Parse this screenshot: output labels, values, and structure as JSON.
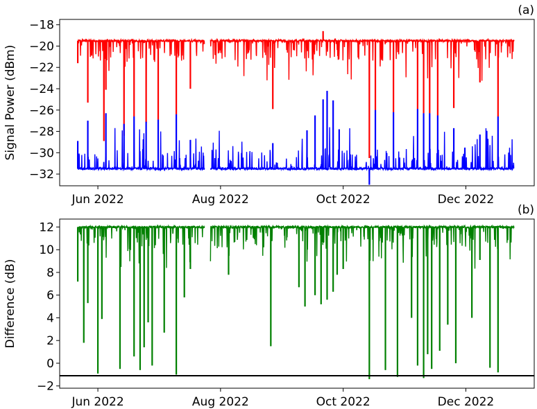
{
  "chart_data": [
    {
      "type": "line",
      "panel_label": "(a)",
      "ylabel": "Signal Power  (dBm)",
      "xlabel": "",
      "x_ticks": [
        "Jun 2022",
        "Aug 2022",
        "Oct 2022",
        "Dec 2022"
      ],
      "x_tick_dates": [
        "2022-06-01",
        "2022-08-01",
        "2022-10-01",
        "2022-12-01"
      ],
      "xlim": [
        "2022-05-13",
        "2023-01-04"
      ],
      "ylim": [
        -33.1,
        -17.5
      ],
      "y_ticks": [
        -32,
        -30,
        -28,
        -26,
        -24,
        -22,
        -20,
        -18
      ],
      "grid": false,
      "legend": "none",
      "data_start": "2022-05-22",
      "data_end": "2022-12-25",
      "data_gap": [
        "2022-07-24",
        "2022-07-27"
      ],
      "series": [
        {
          "color": "#ff0000",
          "baseline": -19.5,
          "values": [
            {
              "x": "2022-05-22",
              "y": -21.6
            },
            {
              "x": "2022-05-27",
              "y": -25.3
            },
            {
              "x": "2022-06-04",
              "y": -28.9
            },
            {
              "x": "2022-06-05",
              "y": -24.1
            },
            {
              "x": "2022-06-14",
              "y": -28.4
            },
            {
              "x": "2022-06-19",
              "y": -26.6
            },
            {
              "x": "2022-06-25",
              "y": -27.2
            },
            {
              "x": "2022-07-01",
              "y": -26.9
            },
            {
              "x": "2022-07-10",
              "y": -26.4
            },
            {
              "x": "2022-07-17",
              "y": -24.0
            },
            {
              "x": "2022-08-27",
              "y": -25.9
            },
            {
              "x": "2022-09-21",
              "y": -18.6
            },
            {
              "x": "2022-09-27",
              "y": -19.3
            },
            {
              "x": "2022-10-14",
              "y": -30.5
            },
            {
              "x": "2022-10-17",
              "y": -26.0
            },
            {
              "x": "2022-10-26",
              "y": -26.2
            },
            {
              "x": "2022-11-07",
              "y": -25.9
            },
            {
              "x": "2022-11-10",
              "y": -26.3
            },
            {
              "x": "2022-11-13",
              "y": -26.3
            },
            {
              "x": "2022-11-17",
              "y": -26.5
            },
            {
              "x": "2022-11-25",
              "y": -25.8
            },
            {
              "x": "2022-12-08",
              "y": -23.4
            },
            {
              "x": "2022-12-17",
              "y": -26.6
            }
          ]
        },
        {
          "color": "#0000ff",
          "baseline": -31.5,
          "values": [
            {
              "x": "2022-05-22",
              "y": -28.9
            },
            {
              "x": "2022-05-27",
              "y": -27.0
            },
            {
              "x": "2022-06-05",
              "y": -26.3
            },
            {
              "x": "2022-06-14",
              "y": -27.3
            },
            {
              "x": "2022-06-19",
              "y": -26.6
            },
            {
              "x": "2022-06-25",
              "y": -27.1
            },
            {
              "x": "2022-07-01",
              "y": -26.9
            },
            {
              "x": "2022-07-10",
              "y": -26.4
            },
            {
              "x": "2022-07-17",
              "y": -28.8
            },
            {
              "x": "2022-08-27",
              "y": -29.1
            },
            {
              "x": "2022-09-13",
              "y": -27.9
            },
            {
              "x": "2022-09-17",
              "y": -26.5
            },
            {
              "x": "2022-09-21",
              "y": -25.0
            },
            {
              "x": "2022-09-23",
              "y": -24.2
            },
            {
              "x": "2022-09-26",
              "y": -25.1
            },
            {
              "x": "2022-09-29",
              "y": -27.8
            },
            {
              "x": "2022-10-14",
              "y": -33.0
            },
            {
              "x": "2022-10-17",
              "y": -26.0
            },
            {
              "x": "2022-10-26",
              "y": -26.2
            },
            {
              "x": "2022-11-07",
              "y": -25.9
            },
            {
              "x": "2022-11-10",
              "y": -26.3
            },
            {
              "x": "2022-11-13",
              "y": -26.3
            },
            {
              "x": "2022-11-17",
              "y": -26.5
            },
            {
              "x": "2022-11-25",
              "y": -27.7
            },
            {
              "x": "2022-12-08",
              "y": -28.3
            },
            {
              "x": "2022-12-17",
              "y": -26.6
            }
          ]
        }
      ]
    },
    {
      "type": "line",
      "panel_label": "(b)",
      "ylabel": "Difference  (dB)",
      "xlabel": "",
      "x_ticks": [
        "Jun 2022",
        "Aug 2022",
        "Oct 2022",
        "Dec 2022"
      ],
      "x_tick_dates": [
        "2022-06-01",
        "2022-08-01",
        "2022-10-01",
        "2022-12-01"
      ],
      "xlim": [
        "2022-05-13",
        "2023-01-04"
      ],
      "ylim": [
        -2.2,
        12.7
      ],
      "y_ticks": [
        -2,
        0,
        2,
        4,
        6,
        8,
        10,
        12
      ],
      "grid": false,
      "legend": "none",
      "threshold": -1.1,
      "threshold_color": "#000000",
      "data_start": "2022-05-22",
      "data_end": "2022-12-25",
      "data_gap": [
        "2022-07-24",
        "2022-07-27"
      ],
      "series": [
        {
          "color": "#008000",
          "baseline": 12.0,
          "values": [
            {
              "x": "2022-05-22",
              "y": 7.2
            },
            {
              "x": "2022-05-25",
              "y": 1.8
            },
            {
              "x": "2022-05-27",
              "y": 5.3
            },
            {
              "x": "2022-06-01",
              "y": -0.9
            },
            {
              "x": "2022-06-03",
              "y": 3.9
            },
            {
              "x": "2022-06-12",
              "y": -0.5
            },
            {
              "x": "2022-06-19",
              "y": 0.6
            },
            {
              "x": "2022-06-22",
              "y": -0.6
            },
            {
              "x": "2022-06-24",
              "y": 1.4
            },
            {
              "x": "2022-06-26",
              "y": 3.6
            },
            {
              "x": "2022-06-28",
              "y": -0.2
            },
            {
              "x": "2022-07-04",
              "y": 2.7
            },
            {
              "x": "2022-07-10",
              "y": -1.0
            },
            {
              "x": "2022-07-14",
              "y": 5.8
            },
            {
              "x": "2022-07-17",
              "y": 8.3
            },
            {
              "x": "2022-08-05",
              "y": 7.8
            },
            {
              "x": "2022-08-26",
              "y": 1.5
            },
            {
              "x": "2022-09-09",
              "y": 6.7
            },
            {
              "x": "2022-09-12",
              "y": 5.0
            },
            {
              "x": "2022-09-17",
              "y": 6.0
            },
            {
              "x": "2022-09-20",
              "y": 5.2
            },
            {
              "x": "2022-09-23",
              "y": 5.6
            },
            {
              "x": "2022-09-26",
              "y": 6.3
            },
            {
              "x": "2022-09-28",
              "y": 7.8
            },
            {
              "x": "2022-10-01",
              "y": 8.3
            },
            {
              "x": "2022-10-14",
              "y": -1.4
            },
            {
              "x": "2022-10-22",
              "y": -0.6
            },
            {
              "x": "2022-10-28",
              "y": -1.2
            },
            {
              "x": "2022-11-04",
              "y": 4.0
            },
            {
              "x": "2022-11-07",
              "y": -0.2
            },
            {
              "x": "2022-11-10",
              "y": -1.3
            },
            {
              "x": "2022-11-12",
              "y": 0.8
            },
            {
              "x": "2022-11-14",
              "y": -0.5
            },
            {
              "x": "2022-11-18",
              "y": 1.1
            },
            {
              "x": "2022-11-22",
              "y": 3.4
            },
            {
              "x": "2022-11-26",
              "y": 0.0
            },
            {
              "x": "2022-12-04",
              "y": 4.0
            },
            {
              "x": "2022-12-08",
              "y": 9.1
            },
            {
              "x": "2022-12-13",
              "y": -0.4
            },
            {
              "x": "2022-12-17",
              "y": -0.8
            }
          ]
        }
      ]
    }
  ]
}
